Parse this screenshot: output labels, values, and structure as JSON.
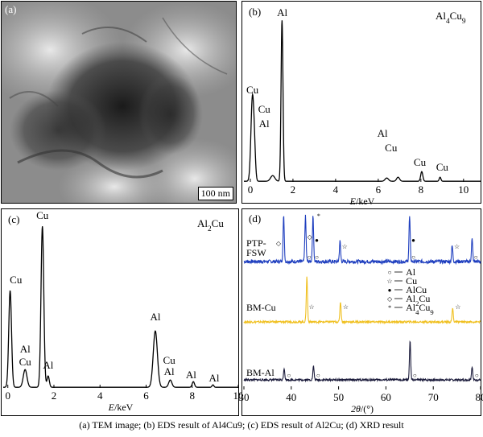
{
  "caption": "(a) TEM image; (b) EDS result of Al4Cu9; (c) EDS result of Al2Cu; (d) XRD result",
  "panels": {
    "a": {
      "label": "(a)",
      "scale_bar": "100 nm"
    },
    "b": {
      "label": "(b)",
      "phase": "Al4Cu9"
    },
    "c": {
      "label": "(c)",
      "phase": "Al2Cu"
    },
    "d": {
      "label": "(d)"
    }
  },
  "chart_data": [
    {
      "type": "line",
      "panel": "(b)",
      "title": "Al4Cu9",
      "xlabel": "E/keV",
      "xlim": [
        -0.3,
        10.8
      ],
      "xticks": [
        0,
        2,
        4,
        6,
        8,
        10
      ],
      "peaks": [
        {
          "x": 0.1,
          "y": 0.52,
          "width": 0.07
        },
        {
          "x": 0.2,
          "y": 0.12,
          "width": 0.05
        },
        {
          "x": 1.05,
          "y": 0.035,
          "width": 0.1
        },
        {
          "x": 1.487,
          "y": 1.0,
          "width": 0.045
        },
        {
          "x": 6.4,
          "y": 0.02,
          "width": 0.08
        },
        {
          "x": 6.93,
          "y": 0.025,
          "width": 0.07
        },
        {
          "x": 8.04,
          "y": 0.06,
          "width": 0.05
        },
        {
          "x": 8.9,
          "y": 0.025,
          "width": 0.04
        }
      ],
      "annotations": [
        {
          "text": "Al",
          "x": 1.5,
          "y": 1.03
        },
        {
          "text": "Cu",
          "x": 0.1,
          "y": 0.55
        },
        {
          "text": "Cu",
          "x": 0.65,
          "y": 0.43
        },
        {
          "text": "Al",
          "x": 0.65,
          "y": 0.34
        },
        {
          "text": "Al",
          "x": 6.2,
          "y": 0.28
        },
        {
          "text": "Cu",
          "x": 6.6,
          "y": 0.19
        },
        {
          "text": "Cu",
          "x": 7.95,
          "y": 0.1
        },
        {
          "text": "Cu",
          "x": 9.0,
          "y": 0.07
        }
      ]
    },
    {
      "type": "line",
      "panel": "(c)",
      "title": "Al2Cu",
      "xlabel": "E/keV",
      "xlim": [
        -0.2,
        10.0
      ],
      "xticks": [
        0,
        2,
        4,
        6,
        8,
        10
      ],
      "peaks": [
        {
          "x": 0.1,
          "y": 0.6,
          "width": 0.06
        },
        {
          "x": 0.75,
          "y": 0.11,
          "width": 0.08
        },
        {
          "x": 1.5,
          "y": 1.0,
          "width": 0.06
        },
        {
          "x": 1.75,
          "y": 0.07,
          "width": 0.05
        },
        {
          "x": 6.4,
          "y": 0.35,
          "width": 0.09
        },
        {
          "x": 7.05,
          "y": 0.045,
          "width": 0.07
        },
        {
          "x": 8.05,
          "y": 0.035,
          "width": 0.05
        },
        {
          "x": 8.9,
          "y": 0.015,
          "width": 0.04
        }
      ],
      "annotations": [
        {
          "text": "Cu",
          "x": 1.5,
          "y": 1.05
        },
        {
          "text": "Cu",
          "x": 0.35,
          "y": 0.65
        },
        {
          "text": "Al",
          "x": 0.75,
          "y": 0.22
        },
        {
          "text": "Cu",
          "x": 0.75,
          "y": 0.14
        },
        {
          "text": "Al",
          "x": 1.75,
          "y": 0.12
        },
        {
          "text": "Al",
          "x": 6.4,
          "y": 0.42
        },
        {
          "text": "Cu",
          "x": 7.0,
          "y": 0.15
        },
        {
          "text": "Al",
          "x": 7.0,
          "y": 0.08
        },
        {
          "text": "Al",
          "x": 7.95,
          "y": 0.06
        },
        {
          "text": "Al",
          "x": 8.95,
          "y": 0.04
        }
      ]
    },
    {
      "type": "line",
      "panel": "(d)",
      "xlabel": "2θ/(°)",
      "xlim": [
        30,
        80
      ],
      "xticks": [
        30,
        40,
        50,
        60,
        70,
        80
      ],
      "legend": [
        {
          "symbol": "○",
          "label": "Al"
        },
        {
          "symbol": "☆",
          "label": "Cu"
        },
        {
          "symbol": "●",
          "label": "AlCu"
        },
        {
          "symbol": "◇",
          "label": "Al2Cu"
        },
        {
          "symbol": "*",
          "label": "Al4Cu9"
        }
      ],
      "series": [
        {
          "name": "PTP-FSW",
          "color": "#1f3fbf",
          "peaks": [
            {
              "x": 38.4,
              "h": 1.0
            },
            {
              "x": 43.0,
              "h": 1.0
            },
            {
              "x": 44.6,
              "h": 1.0
            },
            {
              "x": 50.3,
              "h": 0.45
            },
            {
              "x": 65.0,
              "h": 1.0
            },
            {
              "x": 74.0,
              "h": 0.35
            },
            {
              "x": 78.2,
              "h": 0.5
            }
          ],
          "markers": [
            {
              "symbol": "◇",
              "x": 37.3
            },
            {
              "symbol": "◇",
              "x": 43.9
            },
            {
              "symbol": "*",
              "x": 45.8
            },
            {
              "symbol": "●",
              "x": 45.4
            },
            {
              "symbol": "○",
              "x": 43.8
            },
            {
              "symbol": "○",
              "x": 45.4
            },
            {
              "symbol": "☆",
              "x": 51.3
            },
            {
              "symbol": "●",
              "x": 65.8
            },
            {
              "symbol": "○",
              "x": 65.8
            },
            {
              "symbol": "☆",
              "x": 75.0
            },
            {
              "symbol": "○",
              "x": 79.0
            }
          ]
        },
        {
          "name": "BM-Cu",
          "color": "#f0c020",
          "peaks": [
            {
              "x": 43.3,
              "h": 1.0
            },
            {
              "x": 50.4,
              "h": 0.45
            },
            {
              "x": 74.1,
              "h": 0.3
            }
          ],
          "markers": [
            {
              "symbol": "☆",
              "x": 44.3
            },
            {
              "symbol": "☆",
              "x": 51.5
            },
            {
              "symbol": "☆",
              "x": 75.2
            }
          ]
        },
        {
          "name": "BM-Al",
          "color": "#1a1a3a",
          "peaks": [
            {
              "x": 38.5,
              "h": 0.3
            },
            {
              "x": 44.7,
              "h": 0.35
            },
            {
              "x": 65.1,
              "h": 1.0
            },
            {
              "x": 78.2,
              "h": 0.33
            }
          ],
          "markers": [
            {
              "symbol": "○",
              "x": 39.5
            },
            {
              "symbol": "○",
              "x": 45.7
            },
            {
              "symbol": "○",
              "x": 66.1
            },
            {
              "symbol": "○",
              "x": 79.2
            }
          ]
        }
      ]
    }
  ]
}
